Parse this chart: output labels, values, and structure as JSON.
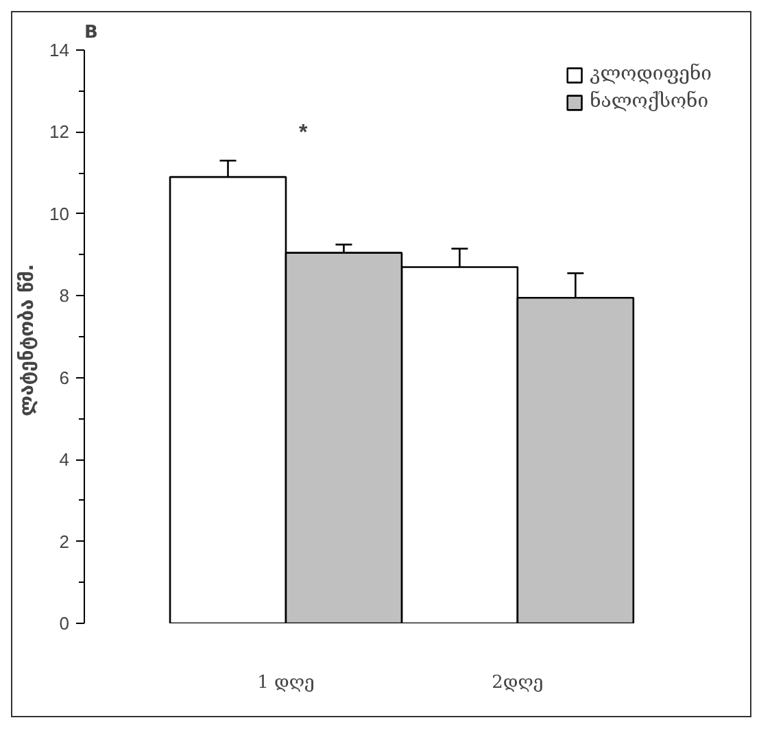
{
  "chart_data": {
    "type": "bar",
    "title": "B",
    "ylabel": "ლატენტობა  წმ.",
    "categories": [
      "1 დღე",
      "2დღე"
    ],
    "series": [
      {
        "name": "კლოდიფენი",
        "color": "#ffffff",
        "values": [
          10.9,
          8.7
        ],
        "errors": [
          0.4,
          0.45
        ]
      },
      {
        "name": "ნალოქსონი",
        "color": "#c0c0c0",
        "values": [
          9.05,
          7.95
        ],
        "errors": [
          0.2,
          0.6
        ]
      }
    ],
    "ylim": [
      0,
      14
    ],
    "yticks": [
      0,
      2,
      4,
      6,
      8,
      10,
      12,
      14
    ],
    "grid": false,
    "legend": "top right",
    "annotations": [
      "*"
    ]
  }
}
